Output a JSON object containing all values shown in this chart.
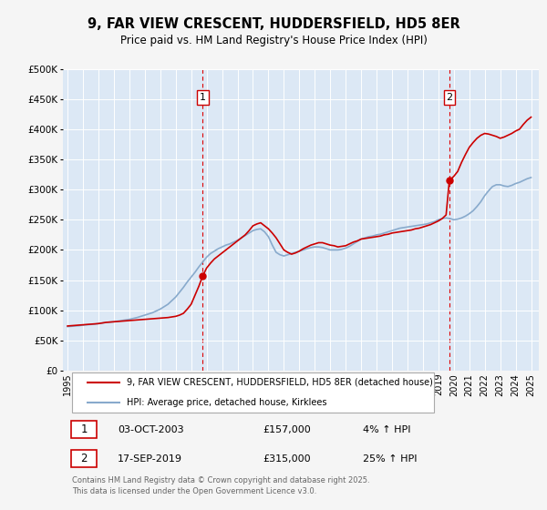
{
  "title": "9, FAR VIEW CRESCENT, HUDDERSFIELD, HD5 8ER",
  "subtitle": "Price paid vs. HM Land Registry's House Price Index (HPI)",
  "background_color": "#f5f5f5",
  "plot_bg_color": "#dce8f5",
  "grid_color": "#ffffff",
  "ylim": [
    0,
    500000
  ],
  "xlim_start": 1994.7,
  "xlim_end": 2025.5,
  "yticks": [
    0,
    50000,
    100000,
    150000,
    200000,
    250000,
    300000,
    350000,
    400000,
    450000,
    500000
  ],
  "ytick_labels": [
    "£0",
    "£50K",
    "£100K",
    "£150K",
    "£200K",
    "£250K",
    "£300K",
    "£350K",
    "£400K",
    "£450K",
    "£500K"
  ],
  "xticks": [
    1995,
    1996,
    1997,
    1998,
    1999,
    2000,
    2001,
    2002,
    2003,
    2004,
    2005,
    2006,
    2007,
    2008,
    2009,
    2010,
    2011,
    2012,
    2013,
    2014,
    2015,
    2016,
    2017,
    2018,
    2019,
    2020,
    2021,
    2022,
    2023,
    2024,
    2025
  ],
  "sale_color": "#cc0000",
  "hpi_color": "#88aacc",
  "sale_linewidth": 1.2,
  "hpi_linewidth": 1.2,
  "marker1_date": 2003.75,
  "marker1_value": 157000,
  "marker1_label": "1",
  "marker2_date": 2019.71,
  "marker2_value": 315000,
  "marker2_label": "2",
  "vline_color": "#dd0000",
  "legend_sale_label": "9, FAR VIEW CRESCENT, HUDDERSFIELD, HD5 8ER (detached house)",
  "legend_hpi_label": "HPI: Average price, detached house, Kirklees",
  "table_rows": [
    {
      "num": "1",
      "date": "03-OCT-2003",
      "price": "£157,000",
      "change": "4% ↑ HPI"
    },
    {
      "num": "2",
      "date": "17-SEP-2019",
      "price": "£315,000",
      "change": "25% ↑ HPI"
    }
  ],
  "footer": "Contains HM Land Registry data © Crown copyright and database right 2025.\nThis data is licensed under the Open Government Licence v3.0.",
  "sale_x": [
    1995.0,
    1995.25,
    1995.5,
    1995.75,
    1996.0,
    1996.25,
    1996.5,
    1996.75,
    1997.0,
    1997.25,
    1997.5,
    1997.75,
    1998.0,
    1998.25,
    1998.5,
    1998.75,
    1999.0,
    1999.25,
    1999.5,
    1999.75,
    2000.0,
    2000.25,
    2000.5,
    2000.75,
    2001.0,
    2001.25,
    2001.5,
    2001.75,
    2002.0,
    2002.25,
    2002.5,
    2002.75,
    2003.0,
    2003.25,
    2003.5,
    2003.75,
    2004.0,
    2004.25,
    2004.5,
    2004.75,
    2005.0,
    2005.25,
    2005.5,
    2005.75,
    2006.0,
    2006.25,
    2006.5,
    2006.75,
    2007.0,
    2007.25,
    2007.5,
    2007.75,
    2008.0,
    2008.25,
    2008.5,
    2008.75,
    2009.0,
    2009.25,
    2009.5,
    2009.75,
    2010.0,
    2010.25,
    2010.5,
    2010.75,
    2011.0,
    2011.25,
    2011.5,
    2011.75,
    2012.0,
    2012.25,
    2012.5,
    2012.75,
    2013.0,
    2013.25,
    2013.5,
    2013.75,
    2014.0,
    2014.25,
    2014.5,
    2014.75,
    2015.0,
    2015.25,
    2015.5,
    2015.75,
    2016.0,
    2016.25,
    2016.5,
    2016.75,
    2017.0,
    2017.25,
    2017.5,
    2017.75,
    2018.0,
    2018.25,
    2018.5,
    2018.75,
    2019.0,
    2019.25,
    2019.5,
    2019.71,
    2020.0,
    2020.25,
    2020.5,
    2020.75,
    2021.0,
    2021.25,
    2021.5,
    2021.75,
    2022.0,
    2022.25,
    2022.5,
    2022.75,
    2023.0,
    2023.25,
    2023.5,
    2023.75,
    2024.0,
    2024.25,
    2024.5,
    2024.75,
    2025.0
  ],
  "sale_y": [
    74000,
    74500,
    75000,
    75500,
    76000,
    76500,
    77000,
    77500,
    78000,
    79000,
    80000,
    80500,
    81000,
    81500,
    82000,
    82500,
    83000,
    83500,
    84000,
    84500,
    85000,
    85500,
    86000,
    86500,
    87000,
    87500,
    88000,
    89000,
    90000,
    92000,
    95000,
    102000,
    110000,
    125000,
    140000,
    157000,
    170000,
    178000,
    185000,
    190000,
    195000,
    200000,
    205000,
    210000,
    215000,
    220000,
    225000,
    232000,
    240000,
    243000,
    245000,
    240000,
    235000,
    228000,
    220000,
    210000,
    200000,
    196000,
    193000,
    195000,
    198000,
    202000,
    205000,
    208000,
    210000,
    212000,
    212000,
    210000,
    208000,
    207000,
    205000,
    206000,
    207000,
    210000,
    213000,
    215000,
    218000,
    219000,
    220000,
    221000,
    222000,
    223000,
    225000,
    226000,
    228000,
    229000,
    230000,
    231000,
    232000,
    233000,
    235000,
    236000,
    238000,
    240000,
    242000,
    245000,
    248000,
    252000,
    258000,
    315000,
    322000,
    330000,
    345000,
    358000,
    370000,
    378000,
    385000,
    390000,
    393000,
    392000,
    390000,
    388000,
    385000,
    387000,
    390000,
    393000,
    397000,
    400000,
    408000,
    415000,
    420000
  ],
  "hpi_x": [
    1995.0,
    1995.25,
    1995.5,
    1995.75,
    1996.0,
    1996.25,
    1996.5,
    1996.75,
    1997.0,
    1997.25,
    1997.5,
    1997.75,
    1998.0,
    1998.25,
    1998.5,
    1998.75,
    1999.0,
    1999.25,
    1999.5,
    1999.75,
    2000.0,
    2000.25,
    2000.5,
    2000.75,
    2001.0,
    2001.25,
    2001.5,
    2001.75,
    2002.0,
    2002.25,
    2002.5,
    2002.75,
    2003.0,
    2003.25,
    2003.5,
    2003.75,
    2004.0,
    2004.25,
    2004.5,
    2004.75,
    2005.0,
    2005.25,
    2005.5,
    2005.75,
    2006.0,
    2006.25,
    2006.5,
    2006.75,
    2007.0,
    2007.25,
    2007.5,
    2007.75,
    2008.0,
    2008.25,
    2008.5,
    2008.75,
    2009.0,
    2009.25,
    2009.5,
    2009.75,
    2010.0,
    2010.25,
    2010.5,
    2010.75,
    2011.0,
    2011.25,
    2011.5,
    2011.75,
    2012.0,
    2012.25,
    2012.5,
    2012.75,
    2013.0,
    2013.25,
    2013.5,
    2013.75,
    2014.0,
    2014.25,
    2014.5,
    2014.75,
    2015.0,
    2015.25,
    2015.5,
    2015.75,
    2016.0,
    2016.25,
    2016.5,
    2016.75,
    2017.0,
    2017.25,
    2017.5,
    2017.75,
    2018.0,
    2018.25,
    2018.5,
    2018.75,
    2019.0,
    2019.25,
    2019.5,
    2019.75,
    2020.0,
    2020.25,
    2020.5,
    2020.75,
    2021.0,
    2021.25,
    2021.5,
    2021.75,
    2022.0,
    2022.25,
    2022.5,
    2022.75,
    2023.0,
    2023.25,
    2023.5,
    2023.75,
    2024.0,
    2024.25,
    2024.5,
    2024.75,
    2025.0
  ],
  "hpi_y": [
    73000,
    73500,
    74000,
    74500,
    75500,
    76000,
    76500,
    77000,
    78000,
    79000,
    80000,
    80500,
    81000,
    82000,
    83000,
    84000,
    85000,
    86500,
    88000,
    90000,
    92000,
    94000,
    96000,
    99000,
    102000,
    106000,
    110000,
    116000,
    122000,
    130000,
    138000,
    147000,
    155000,
    163000,
    172000,
    180000,
    188000,
    194000,
    198000,
    202000,
    205000,
    208000,
    210000,
    213000,
    216000,
    220000,
    224000,
    228000,
    232000,
    234000,
    235000,
    230000,
    222000,
    208000,
    196000,
    192000,
    190000,
    192000,
    194000,
    196000,
    198000,
    200000,
    202000,
    204000,
    205000,
    205000,
    204000,
    202000,
    200000,
    200000,
    200000,
    201000,
    203000,
    206000,
    210000,
    214000,
    218000,
    220000,
    222000,
    223000,
    225000,
    226000,
    228000,
    230000,
    232000,
    234000,
    236000,
    237000,
    238000,
    239000,
    240000,
    241000,
    242000,
    243000,
    245000,
    247000,
    250000,
    252000,
    253000,
    252000,
    250000,
    251000,
    253000,
    256000,
    260000,
    265000,
    272000,
    280000,
    290000,
    298000,
    305000,
    308000,
    308000,
    306000,
    305000,
    307000,
    310000,
    312000,
    315000,
    318000,
    320000
  ]
}
